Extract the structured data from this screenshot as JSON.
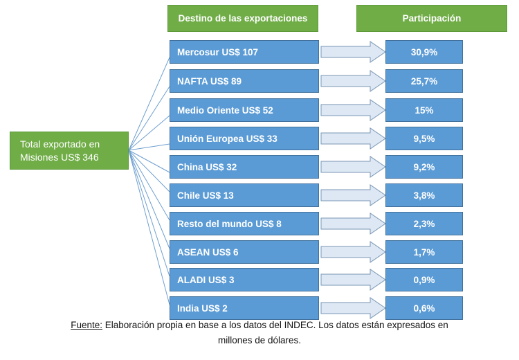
{
  "headers": {
    "destination": "Destino de las exportaciones",
    "share": "Participación"
  },
  "total": {
    "line1": "Total exportado en",
    "line2": "Misiones US$ 346"
  },
  "rows": [
    {
      "dest": "Mercosur US$ 107",
      "pct": "30,9%"
    },
    {
      "dest": "NAFTA US$ 89",
      "pct": "25,7%"
    },
    {
      "dest": "Medio Oriente US$ 52",
      "pct": "15%"
    },
    {
      "dest": "Unión Europea US$ 33",
      "pct": "9,5%"
    },
    {
      "dest": "China US$ 32",
      "pct": "9,2%"
    },
    {
      "dest": "Chile US$ 13",
      "pct": "3,8%"
    },
    {
      "dest": "Resto del mundo US$ 8",
      "pct": "2,3%"
    },
    {
      "dest": "ASEAN US$ 6",
      "pct": "1,7%"
    },
    {
      "dest": "ALADI US$ 3",
      "pct": "0,9%"
    },
    {
      "dest": "India US$ 2",
      "pct": "0,6%"
    }
  ],
  "footer": {
    "label": "Fuente:",
    "text": " Elaboración propia en base a los datos del INDEC. Los datos están expresados en",
    "line2": "millones de dólares."
  },
  "colors": {
    "green": "#70ad47",
    "blue": "#5b9bd5",
    "arrow": "#dde8f4"
  }
}
